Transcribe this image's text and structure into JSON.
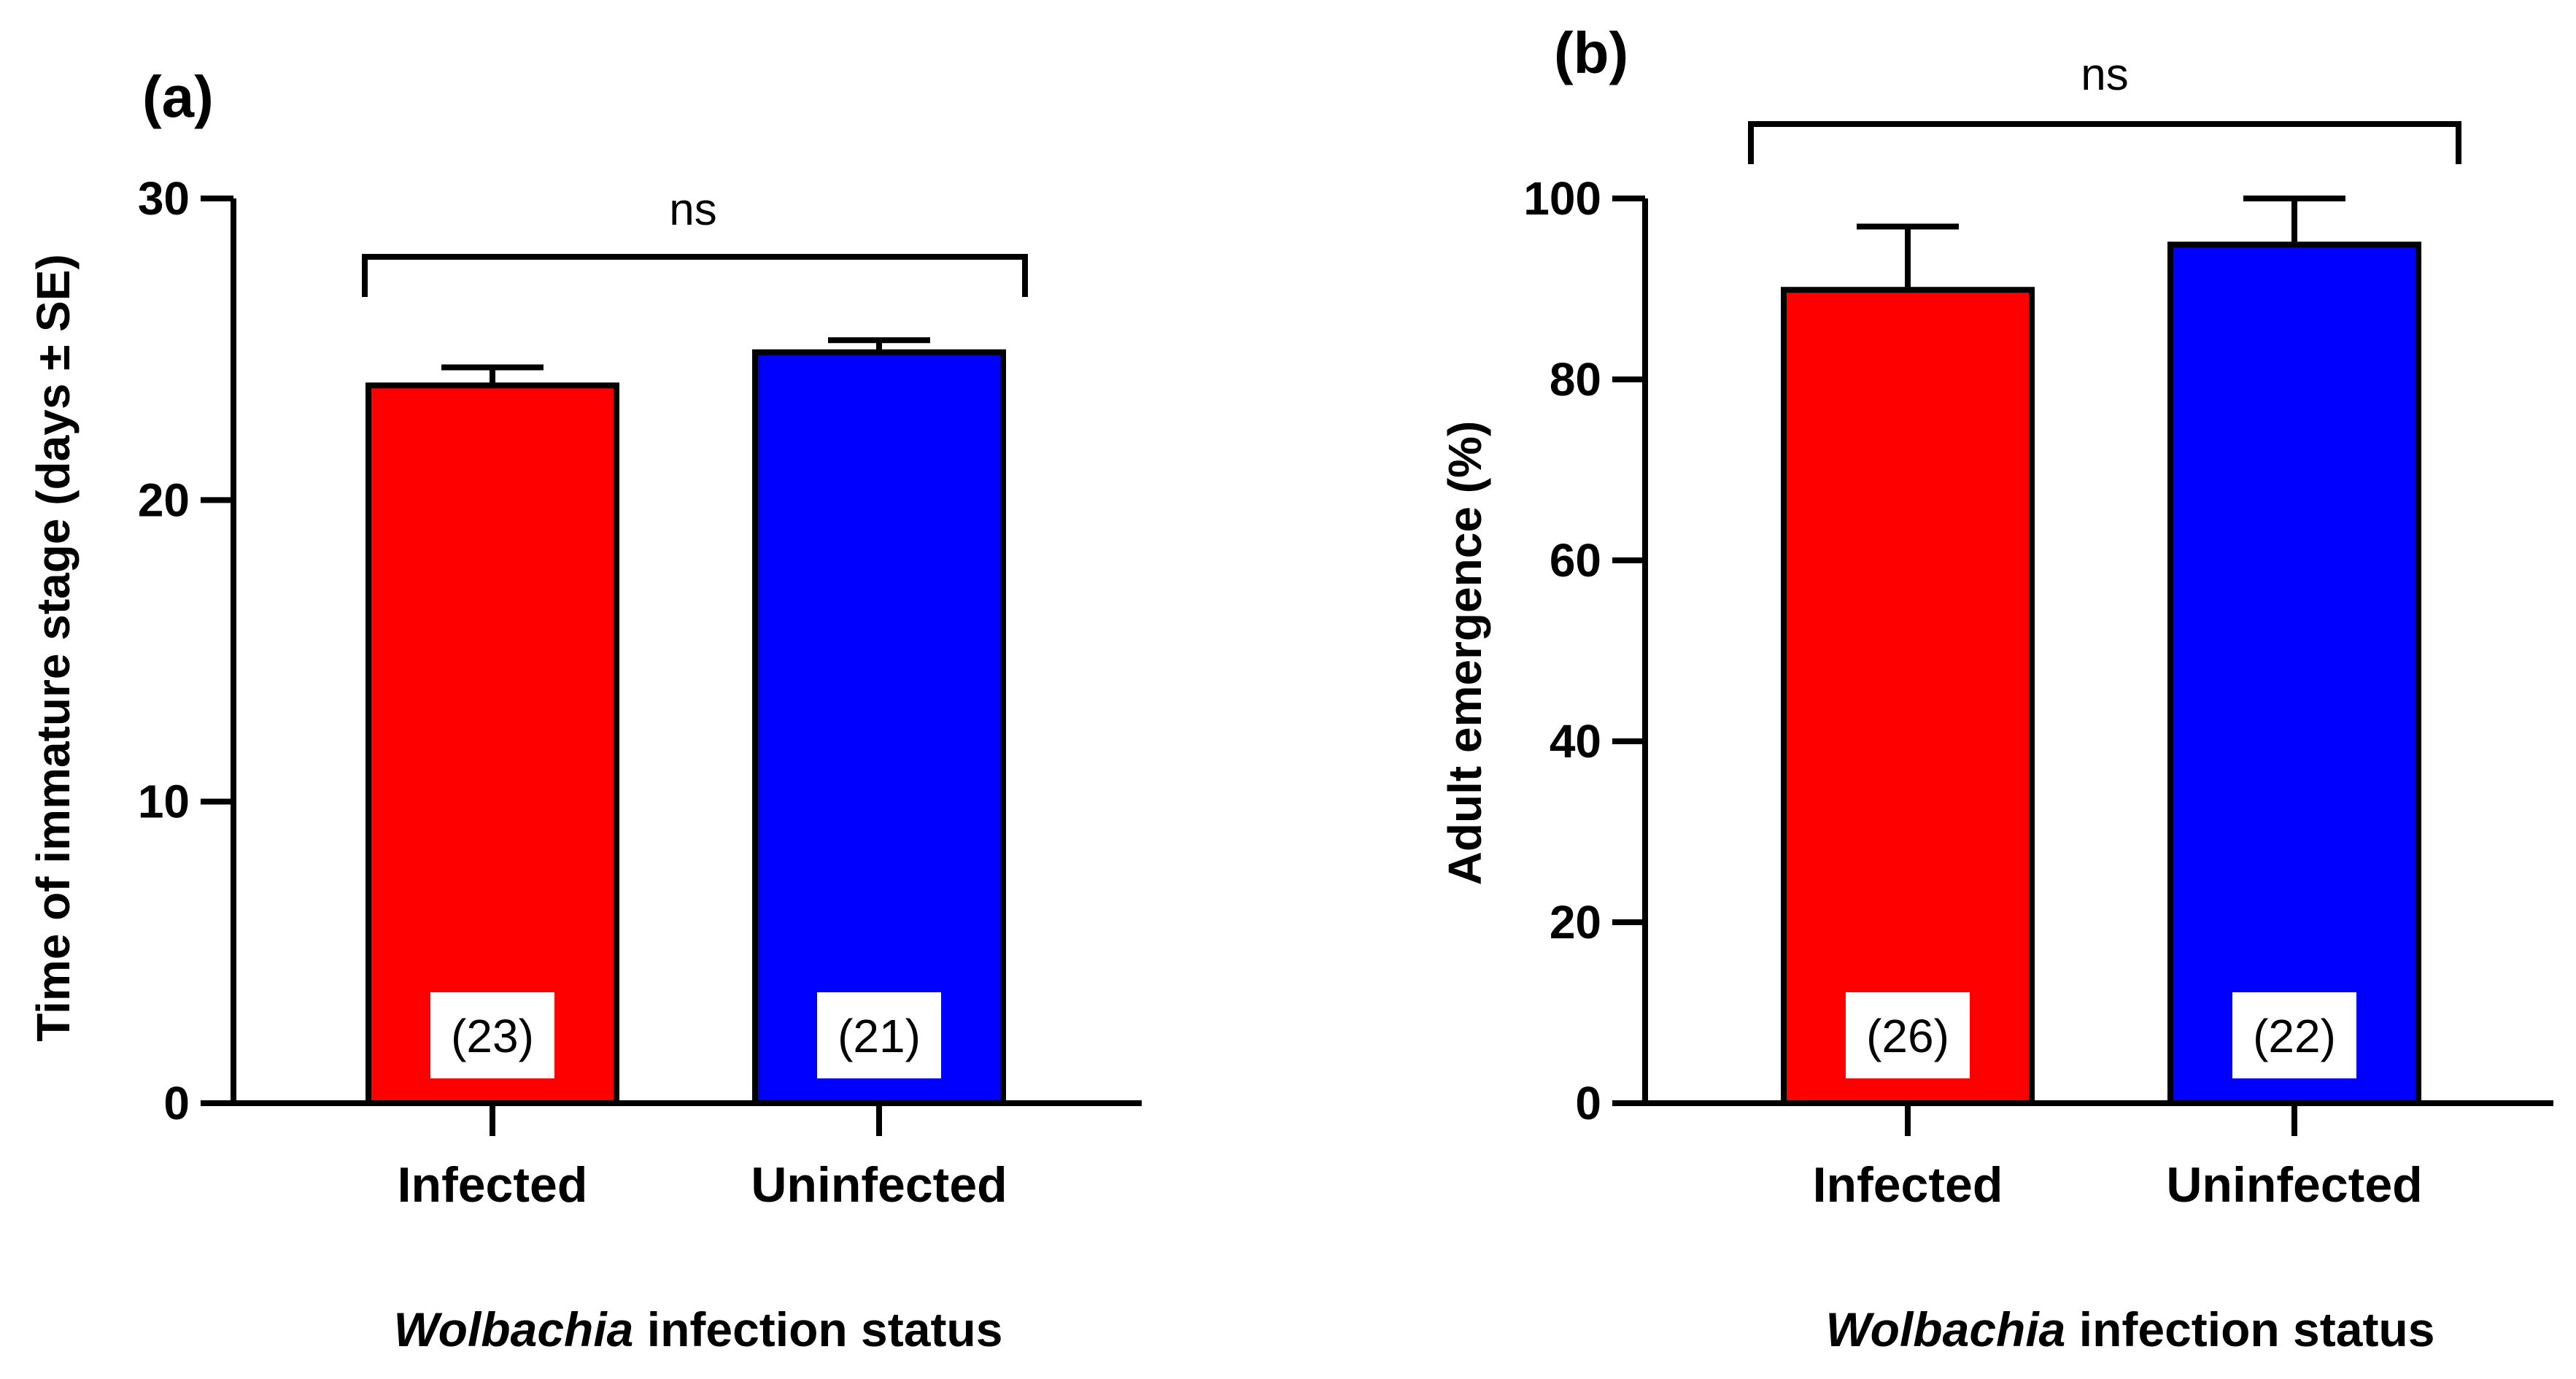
{
  "chart_data": [
    {
      "type": "bar",
      "panel_label": "(a)",
      "categories": [
        "Infected",
        "Uninfected"
      ],
      "values": [
        23.8,
        24.9
      ],
      "errors": [
        0.6,
        0.4
      ],
      "colors": [
        "#ff0000",
        "#0000ff"
      ],
      "sample_sizes": [
        "(23)",
        "(21)"
      ],
      "ylabel": "Time of immature stage (days ± SE)",
      "xlabel_italic": "Wolbachia",
      "xlabel_rest": " infection status",
      "ylim": [
        0,
        30
      ],
      "yticks": [
        0,
        10,
        20,
        30
      ],
      "significance": "ns",
      "grid": false
    },
    {
      "type": "bar",
      "panel_label": "(b)",
      "categories": [
        "Infected",
        "Uninfected"
      ],
      "values": [
        89.9,
        94.9
      ],
      "errors": [
        7.0,
        5.1
      ],
      "colors": [
        "#ff0000",
        "#0000ff"
      ],
      "sample_sizes": [
        "(26)",
        "(22)"
      ],
      "ylabel": "Adult emergence (%)",
      "xlabel_italic": "Wolbachia",
      "xlabel_rest": " infection status",
      "ylim": [
        0,
        100
      ],
      "yticks": [
        0,
        20,
        40,
        60,
        80,
        100
      ],
      "significance": "ns",
      "grid": false
    }
  ]
}
